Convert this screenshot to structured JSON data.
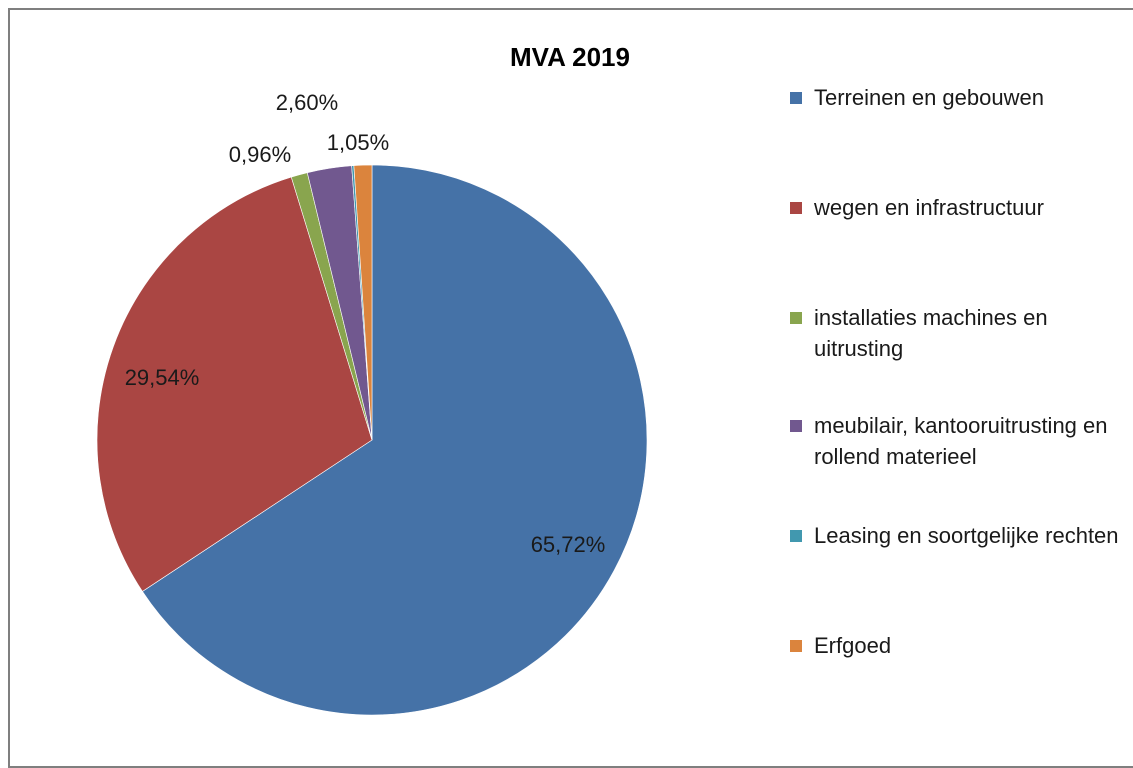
{
  "chart_data": {
    "type": "pie",
    "title": "MVA 2019",
    "slices": [
      {
        "label": "Terreinen en gebouwen",
        "value": 65.72,
        "display": "65,72%",
        "color": "#4572A7"
      },
      {
        "label": "wegen en infrastructuur",
        "value": 29.54,
        "display": "29,54%",
        "color": "#AA4643"
      },
      {
        "label": "installaties machines en uitrusting",
        "value": 0.96,
        "display": "0,96%",
        "color": "#89A54E"
      },
      {
        "label": "meubilair, kantooruitrusting en rollend materieel",
        "value": 2.6,
        "display": "2,60%",
        "color": "#71588F"
      },
      {
        "label": "Leasing en soortgelijke rechten",
        "value": 0.13,
        "display": "",
        "color": "#4198AF"
      },
      {
        "label": "Erfgoed",
        "value": 1.05,
        "display": "1,05%",
        "color": "#DB843D"
      }
    ],
    "legend_position": "right"
  }
}
